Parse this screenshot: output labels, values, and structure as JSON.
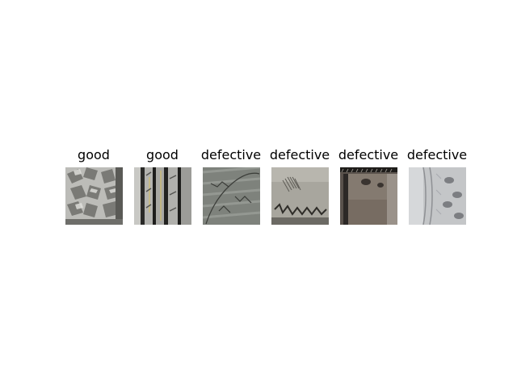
{
  "images": [
    {
      "label": "good",
      "description": "close-up of tire tread with chunky block pattern"
    },
    {
      "label": "good",
      "description": "close-up of tire with parallel straight grooves"
    },
    {
      "label": "defective",
      "description": "worn tire tread with cracks"
    },
    {
      "label": "defective",
      "description": "tire sidewall with tear and jagged damage"
    },
    {
      "label": "defective",
      "description": "dark tire sidewall with bulge defect"
    },
    {
      "label": "defective",
      "description": "pale tire sidewall with cracking"
    }
  ],
  "colors": {
    "background": "#ffffff",
    "text": "#000000"
  }
}
